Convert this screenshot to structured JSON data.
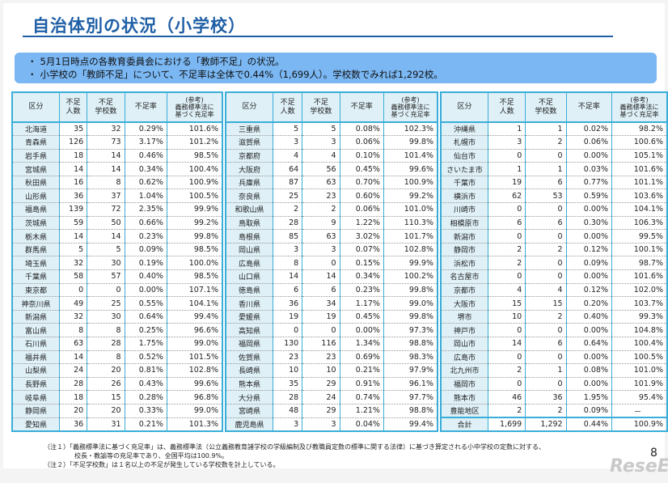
{
  "title": "自治体別の状況（小学校）",
  "summary": [
    "5月1日時点の各教育委員会における「教師不足」の状況。",
    "小学校の「教師不足」について、不足率は全体で0.44%（1,699人）。学校数でみれば1,292校。"
  ],
  "headers": [
    "区分",
    "不足\n人数",
    "不足\n学校数",
    "不足率",
    "(参考)\n義務標準法に\n基づく充足率"
  ],
  "tables": [
    [
      [
        "北海道",
        "35",
        "32",
        "0.29%",
        "101.6%"
      ],
      [
        "青森県",
        "126",
        "73",
        "3.17%",
        "101.2%"
      ],
      [
        "岩手県",
        "18",
        "14",
        "0.46%",
        "98.5%"
      ],
      [
        "宮城県",
        "14",
        "14",
        "0.34%",
        "100.4%"
      ],
      [
        "秋田県",
        "16",
        "8",
        "0.62%",
        "100.9%"
      ],
      [
        "山形県",
        "36",
        "37",
        "1.04%",
        "100.5%"
      ],
      [
        "福島県",
        "139",
        "72",
        "2.35%",
        "99.9%"
      ],
      [
        "茨城県",
        "59",
        "50",
        "0.66%",
        "99.2%"
      ],
      [
        "栃木県",
        "14",
        "14",
        "0.23%",
        "99.8%"
      ],
      [
        "群馬県",
        "5",
        "5",
        "0.09%",
        "98.5%"
      ],
      [
        "埼玉県",
        "32",
        "30",
        "0.19%",
        "100.0%"
      ],
      [
        "千葉県",
        "58",
        "57",
        "0.40%",
        "98.5%"
      ],
      [
        "東京都",
        "0",
        "0",
        "0.00%",
        "107.1%"
      ],
      [
        "神奈川県",
        "49",
        "25",
        "0.55%",
        "104.1%"
      ],
      [
        "新潟県",
        "32",
        "30",
        "0.64%",
        "99.4%"
      ],
      [
        "富山県",
        "8",
        "8",
        "0.25%",
        "96.6%"
      ],
      [
        "石川県",
        "63",
        "28",
        "1.75%",
        "99.0%"
      ],
      [
        "福井県",
        "14",
        "8",
        "0.52%",
        "101.5%"
      ],
      [
        "山梨県",
        "24",
        "20",
        "0.81%",
        "102.8%"
      ],
      [
        "長野県",
        "28",
        "26",
        "0.43%",
        "99.6%"
      ],
      [
        "岐阜県",
        "18",
        "15",
        "0.28%",
        "96.8%"
      ],
      [
        "静岡県",
        "20",
        "20",
        "0.33%",
        "99.0%"
      ],
      [
        "愛知県",
        "36",
        "31",
        "0.21%",
        "101.3%"
      ]
    ],
    [
      [
        "三重県",
        "5",
        "5",
        "0.08%",
        "102.3%"
      ],
      [
        "滋賀県",
        "3",
        "3",
        "0.06%",
        "99.8%"
      ],
      [
        "京都府",
        "4",
        "4",
        "0.10%",
        "101.4%"
      ],
      [
        "大阪府",
        "64",
        "56",
        "0.45%",
        "99.6%"
      ],
      [
        "兵庫県",
        "87",
        "63",
        "0.70%",
        "100.9%"
      ],
      [
        "奈良県",
        "25",
        "23",
        "0.60%",
        "99.2%"
      ],
      [
        "和歌山県",
        "2",
        "2",
        "0.06%",
        "101.0%"
      ],
      [
        "鳥取県",
        "28",
        "9",
        "1.22%",
        "110.3%"
      ],
      [
        "島根県",
        "85",
        "63",
        "3.02%",
        "101.7%"
      ],
      [
        "岡山県",
        "3",
        "3",
        "0.07%",
        "102.8%"
      ],
      [
        "広島県",
        "8",
        "0",
        "0.15%",
        "99.9%"
      ],
      [
        "山口県",
        "14",
        "14",
        "0.34%",
        "100.2%"
      ],
      [
        "徳島県",
        "6",
        "6",
        "0.23%",
        "99.8%"
      ],
      [
        "香川県",
        "36",
        "34",
        "1.17%",
        "99.0%"
      ],
      [
        "愛媛県",
        "19",
        "19",
        "0.45%",
        "99.8%"
      ],
      [
        "高知県",
        "0",
        "0",
        "0.00%",
        "97.3%"
      ],
      [
        "福岡県",
        "130",
        "116",
        "1.34%",
        "98.8%"
      ],
      [
        "佐賀県",
        "23",
        "23",
        "0.69%",
        "98.3%"
      ],
      [
        "長崎県",
        "10",
        "10",
        "0.21%",
        "97.9%"
      ],
      [
        "熊本県",
        "35",
        "29",
        "0.91%",
        "96.1%"
      ],
      [
        "大分県",
        "28",
        "24",
        "0.74%",
        "97.7%"
      ],
      [
        "宮崎県",
        "48",
        "29",
        "1.21%",
        "98.8%"
      ],
      [
        "鹿児島県",
        "3",
        "3",
        "0.04%",
        "99.4%"
      ]
    ],
    [
      [
        "沖縄県",
        "1",
        "1",
        "0.02%",
        "98.2%"
      ],
      [
        "札幌市",
        "3",
        "2",
        "0.06%",
        "100.6%"
      ],
      [
        "仙台市",
        "0",
        "0",
        "0.00%",
        "105.1%"
      ],
      [
        "さいたま市",
        "1",
        "1",
        "0.03%",
        "101.6%"
      ],
      [
        "千葉市",
        "19",
        "6",
        "0.77%",
        "101.1%"
      ],
      [
        "横浜市",
        "62",
        "53",
        "0.59%",
        "103.6%"
      ],
      [
        "川崎市",
        "0",
        "0",
        "0.00%",
        "104.1%"
      ],
      [
        "相模原市",
        "6",
        "6",
        "0.30%",
        "106.3%"
      ],
      [
        "新潟市",
        "0",
        "0",
        "0.00%",
        "99.5%"
      ],
      [
        "静岡市",
        "2",
        "2",
        "0.12%",
        "100.1%"
      ],
      [
        "浜松市",
        "2",
        "0",
        "0.09%",
        "98.7%"
      ],
      [
        "名古屋市",
        "0",
        "0",
        "0.00%",
        "101.6%"
      ],
      [
        "京都市",
        "4",
        "4",
        "0.12%",
        "102.0%"
      ],
      [
        "大阪市",
        "15",
        "15",
        "0.20%",
        "103.7%"
      ],
      [
        "堺市",
        "10",
        "2",
        "0.40%",
        "99.3%"
      ],
      [
        "神戸市",
        "0",
        "0",
        "0.00%",
        "104.8%"
      ],
      [
        "岡山市",
        "14",
        "6",
        "0.64%",
        "100.4%"
      ],
      [
        "広島市",
        "0",
        "0",
        "0.00%",
        "100.5%"
      ],
      [
        "北九州市",
        "2",
        "1",
        "0.08%",
        "101.0%"
      ],
      [
        "福岡市",
        "0",
        "0",
        "0.00%",
        "101.9%"
      ],
      [
        "熊本市",
        "46",
        "36",
        "1.95%",
        "95.4%"
      ],
      [
        "豊能地区",
        "2",
        "2",
        "0.09%",
        "－"
      ],
      [
        "合計",
        "1,699",
        "1,292",
        "0.44%",
        "100.9%"
      ]
    ]
  ],
  "notes": [
    "（注１）「義務標準法に基づく充足率」は、義務標準法（公立義務教育諸学校の学級編制及び教職員定数の標準に関する法律）に基づき算定される小中学校の定数に対する、",
    "校長・教諭等の充足率であり、全国平均は100.9%。",
    "（注２）「不足学校数」は１名以上の不足が発生している学校数を計上している。"
  ],
  "page_number": "8",
  "logo": "ReseEd",
  "colors": {
    "title": "#1f5fa6",
    "summary_bg": "#7ab7f3",
    "table_border": "#3aaed8",
    "header_bg": "#dff0f7"
  }
}
